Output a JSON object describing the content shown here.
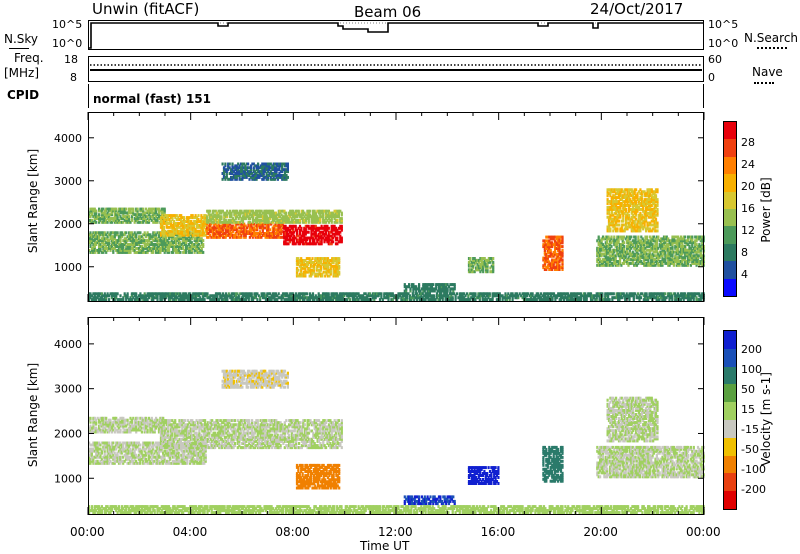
{
  "header": {
    "station": "Unwin (fitACF)",
    "beam": "Beam 06",
    "date": "24/Oct/2017"
  },
  "strips": {
    "nsky_label": "N.Sky",
    "nsky_ticks": [
      "10^5",
      "10^0"
    ],
    "nsearch_label": "N.Search",
    "freq_label": "Freq.",
    "freq_unit": "[MHz]",
    "freq_ticks": [
      "18",
      "8"
    ],
    "nave_ticks": [
      "60",
      "0"
    ],
    "nave_label": "Nave",
    "cpid_label": "CPID",
    "cpid_value": "normal (fast) 151"
  },
  "axes": {
    "ylabel": "Slant Range [km]",
    "yticks": [
      "4000",
      "3000",
      "2000",
      "1000"
    ],
    "xticks": [
      "00:00",
      "04:00",
      "08:00",
      "12:00",
      "16:00",
      "20:00",
      "00:00"
    ],
    "xlabel": "Time UT"
  },
  "colorbars": {
    "power": {
      "label": "Power [dB]",
      "ticks": [
        "28",
        "24",
        "20",
        "16",
        "12",
        "8",
        "4"
      ],
      "colors": [
        "#e8000b",
        "#f04010",
        "#ff7f00",
        "#f8b000",
        "#d8c830",
        "#98c050",
        "#4c9a5a",
        "#2c7a60",
        "#2050a0",
        "#0a0aff"
      ]
    },
    "velocity": {
      "label": "Velocity [m s-1]",
      "ticks": [
        "200",
        "100",
        "50",
        "15",
        "-15",
        "-50",
        "-100",
        "-200"
      ],
      "colors": [
        "#1020d0",
        "#1a50b8",
        "#2a7a6a",
        "#5aa040",
        "#a0d060",
        "#c8c8c0",
        "#f0c000",
        "#f08000",
        "#e84010",
        "#e00000"
      ]
    }
  },
  "chart_data": [
    {
      "type": "heatmap",
      "title": "Power [dB]",
      "xlabel": "Time UT",
      "ylabel": "Slant Range [km]",
      "xlim": [
        0,
        24
      ],
      "ylim": [
        180,
        4600
      ],
      "color_range": [
        0,
        30
      ],
      "blobs": [
        {
          "t0": 0.0,
          "t1": 4.5,
          "r0": 1300,
          "r1": 1800,
          "v": 12
        },
        {
          "t0": 0.0,
          "t1": 3.0,
          "r0": 2000,
          "r1": 2350,
          "v": 12
        },
        {
          "t0": 2.8,
          "t1": 4.6,
          "r0": 1700,
          "r1": 2200,
          "v": 18
        },
        {
          "t0": 4.6,
          "t1": 7.6,
          "r0": 1650,
          "r1": 2000,
          "v": 24
        },
        {
          "t0": 7.6,
          "t1": 9.9,
          "r0": 1500,
          "r1": 1950,
          "v": 28
        },
        {
          "t0": 4.6,
          "t1": 9.9,
          "r0": 2000,
          "r1": 2300,
          "v": 14
        },
        {
          "t0": 8.1,
          "t1": 9.8,
          "r0": 750,
          "r1": 1200,
          "v": 18
        },
        {
          "t0": 5.2,
          "t1": 7.8,
          "r0": 3000,
          "r1": 3400,
          "v": 6
        },
        {
          "t0": 14.8,
          "t1": 15.8,
          "r0": 850,
          "r1": 1200,
          "v": 12
        },
        {
          "t0": 12.3,
          "t1": 14.3,
          "r0": 400,
          "r1": 600,
          "v": 8
        },
        {
          "t0": 17.7,
          "t1": 18.5,
          "r0": 900,
          "r1": 1700,
          "v": 24
        },
        {
          "t0": 19.8,
          "t1": 24.0,
          "r0": 1000,
          "r1": 1700,
          "v": 12
        },
        {
          "t0": 20.2,
          "t1": 22.2,
          "r0": 1800,
          "r1": 2800,
          "v": 18
        },
        {
          "t0": 0.0,
          "t1": 24.0,
          "r0": 200,
          "r1": 380,
          "v": 8
        }
      ]
    },
    {
      "type": "heatmap",
      "title": "Velocity [m s-1]",
      "xlabel": "Time UT",
      "ylabel": "Slant Range [km]",
      "xlim": [
        0,
        24
      ],
      "ylim": [
        180,
        4600
      ],
      "color_range": [
        -250,
        250
      ],
      "blobs": [
        {
          "t0": 0.0,
          "t1": 4.6,
          "r0": 1300,
          "r1": 1800,
          "v": 0
        },
        {
          "t0": 0.0,
          "t1": 3.0,
          "r0": 2000,
          "r1": 2350,
          "v": 0
        },
        {
          "t0": 2.8,
          "t1": 9.9,
          "r0": 1650,
          "r1": 2300,
          "v": 0
        },
        {
          "t0": 8.1,
          "t1": 9.8,
          "r0": 750,
          "r1": 1300,
          "v": -120
        },
        {
          "t0": 5.2,
          "t1": 7.8,
          "r0": 3000,
          "r1": 3400,
          "v": -40
        },
        {
          "t0": 14.8,
          "t1": 16.0,
          "r0": 850,
          "r1": 1250,
          "v": 220
        },
        {
          "t0": 12.3,
          "t1": 14.3,
          "r0": 400,
          "r1": 600,
          "v": 200
        },
        {
          "t0": 17.7,
          "t1": 18.5,
          "r0": 900,
          "r1": 1700,
          "v": 120
        },
        {
          "t0": 19.8,
          "t1": 24.0,
          "r0": 1000,
          "r1": 1700,
          "v": 0
        },
        {
          "t0": 20.2,
          "t1": 22.2,
          "r0": 1800,
          "r1": 2800,
          "v": 0
        },
        {
          "t0": 0.0,
          "t1": 24.0,
          "r0": 200,
          "r1": 380,
          "v": 20
        }
      ]
    }
  ]
}
